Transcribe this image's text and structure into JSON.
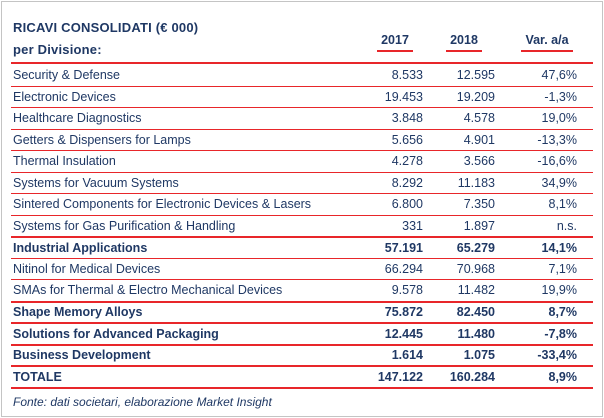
{
  "header": {
    "title_line1": "RICAVI CONSOLIDATI (€ 000)",
    "title_line2": "per Divisione:"
  },
  "chart_data": {
    "type": "table",
    "title": "RICAVI CONSOLIDATI (€ 000) per Divisione:",
    "columns": [
      "2017",
      "2018",
      "Var. a/a"
    ],
    "rows": [
      {
        "division": "Security & Defense",
        "y2017": "8.533",
        "y2018": "12.595",
        "var_aa": "47,6%",
        "emphasis": false
      },
      {
        "division": "Electronic Devices",
        "y2017": "19.453",
        "y2018": "19.209",
        "var_aa": "-1,3%",
        "emphasis": false
      },
      {
        "division": "Healthcare Diagnostics",
        "y2017": "3.848",
        "y2018": "4.578",
        "var_aa": "19,0%",
        "emphasis": false
      },
      {
        "division": "Getters & Dispensers for Lamps",
        "y2017": "5.656",
        "y2018": "4.901",
        "var_aa": "-13,3%",
        "emphasis": false
      },
      {
        "division": "Thermal Insulation",
        "y2017": "4.278",
        "y2018": "3.566",
        "var_aa": "-16,6%",
        "emphasis": false
      },
      {
        "division": "Systems for Vacuum Systems",
        "y2017": "8.292",
        "y2018": "11.183",
        "var_aa": "34,9%",
        "emphasis": false
      },
      {
        "division": "Sintered Components for Electronic Devices & Lasers",
        "y2017": "6.800",
        "y2018": "7.350",
        "var_aa": "8,1%",
        "emphasis": false
      },
      {
        "division": "Systems for Gas Purification & Handling",
        "y2017": "331",
        "y2018": "1.897",
        "var_aa": "n.s.",
        "emphasis": false
      },
      {
        "division": "Industrial Applications",
        "y2017": "57.191",
        "y2018": "65.279",
        "var_aa": "14,1%",
        "emphasis": true
      },
      {
        "division": "Nitinol for Medical Devices",
        "y2017": "66.294",
        "y2018": "70.968",
        "var_aa": "7,1%",
        "emphasis": false
      },
      {
        "division": "SMAs for Thermal & Electro Mechanical Devices",
        "y2017": "9.578",
        "y2018": "11.482",
        "var_aa": "19,9%",
        "emphasis": false
      },
      {
        "division": "Shape Memory Alloys",
        "y2017": "75.872",
        "y2018": "82.450",
        "var_aa": "8,7%",
        "emphasis": true
      },
      {
        "division": "Solutions for Advanced Packaging",
        "y2017": "12.445",
        "y2018": "11.480",
        "var_aa": "-7,8%",
        "emphasis": true
      },
      {
        "division": "Business Development",
        "y2017": "1.614",
        "y2018": "1.075",
        "var_aa": "-33,4%",
        "emphasis": true
      },
      {
        "division": "TOTALE",
        "y2017": "147.122",
        "y2018": "160.284",
        "var_aa": "8,9%",
        "emphasis": true
      }
    ]
  },
  "footer": {
    "source": "Fonte: dati societari, elaborazione Market Insight"
  },
  "colors": {
    "text_navy": "#1f3864",
    "line_red": "#e8262a",
    "border_gray": "#c4c4c4",
    "background": "#ffffff"
  }
}
